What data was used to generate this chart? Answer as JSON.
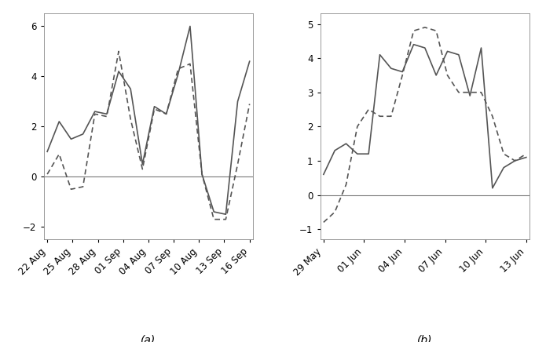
{
  "panel_a": {
    "x_labels": [
      "22 Aug",
      "25 Aug",
      "28 Aug",
      "01 Sep",
      "04 Aug",
      "07 Sep",
      "10 Aug",
      "13 Sep",
      "16 Sep"
    ],
    "solid": [
      1.0,
      2.2,
      1.5,
      1.7,
      2.6,
      2.5,
      4.2,
      3.5,
      0.5,
      2.8,
      2.5,
      4.1,
      6.0,
      0.1,
      -1.4,
      -1.5,
      3.0,
      4.6
    ],
    "dashed": [
      0.1,
      0.9,
      -0.5,
      -0.4,
      2.5,
      2.4,
      5.0,
      2.3,
      0.3,
      2.7,
      2.5,
      4.3,
      4.5,
      0.1,
      -1.7,
      -1.7,
      0.5,
      2.9
    ],
    "ylim": [
      -2.5,
      6.5
    ],
    "yticks": [
      -2,
      0,
      2,
      4,
      6
    ],
    "label": "(a)"
  },
  "panel_b": {
    "x_labels": [
      "29 May",
      "01 Jun",
      "04 Jun",
      "07 Jun",
      "10 Jun",
      "13 Jun"
    ],
    "solid": [
      0.6,
      1.3,
      1.5,
      1.2,
      1.2,
      4.1,
      3.7,
      3.6,
      4.4,
      4.3,
      3.5,
      4.2,
      4.1,
      2.9,
      4.3,
      0.2,
      0.8,
      1.0,
      1.1
    ],
    "dashed": [
      -0.8,
      -0.5,
      0.3,
      2.0,
      2.5,
      2.3,
      2.3,
      3.5,
      4.8,
      4.9,
      4.8,
      3.5,
      3.0,
      3.0,
      3.0,
      2.3,
      1.2,
      1.0,
      1.2
    ],
    "ylim": [
      -1.3,
      5.3
    ],
    "yticks": [
      -1,
      0,
      1,
      2,
      3,
      4,
      5
    ],
    "label": "(b)"
  },
  "line_color": "#555555",
  "line_width": 1.2,
  "zero_line_color": "#777777",
  "background_color": "#ffffff",
  "tick_fontsize": 8.5,
  "label_fontsize": 10
}
